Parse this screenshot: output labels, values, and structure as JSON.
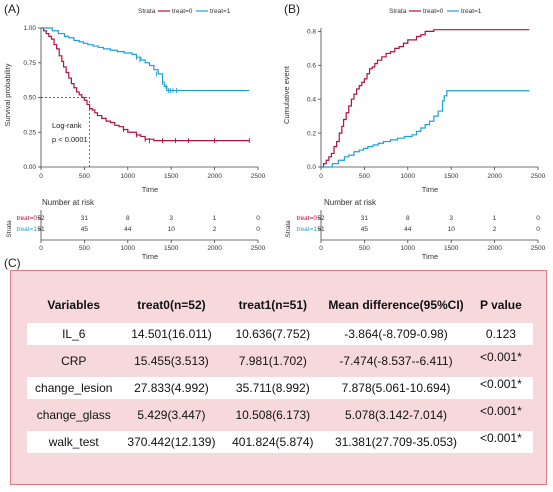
{
  "panels": {
    "a_label": "(A)",
    "b_label": "(B)",
    "c_label": "(C)"
  },
  "legend": {
    "title": "Strata",
    "items": [
      "treat=0",
      "treat=1"
    ],
    "colors": [
      "#b5103c",
      "#1fa0d8"
    ]
  },
  "chart_data": [
    {
      "type": "line",
      "panel": "A",
      "ylabel": "Survival probability",
      "xlabel": "Time",
      "xlim": [
        0,
        2500
      ],
      "ylim": [
        0,
        1
      ],
      "xticks": [
        0,
        500,
        1000,
        1500,
        2000,
        2500
      ],
      "yticks": [
        "0.00",
        "0.25",
        "0.50",
        "0.75",
        "1.00"
      ],
      "annotation": [
        "Log-rank",
        "p < 0.0001"
      ],
      "series": [
        {
          "name": "treat=0",
          "x": [
            0,
            30,
            60,
            90,
            120,
            150,
            180,
            210,
            240,
            260,
            290,
            320,
            350,
            380,
            410,
            440,
            470,
            500,
            530,
            560,
            590,
            620,
            650,
            700,
            750,
            800,
            850,
            900,
            950,
            1000,
            1100,
            1150,
            1200,
            1300,
            1500,
            1700,
            2000,
            2400
          ],
          "y": [
            1.0,
            0.98,
            0.96,
            0.94,
            0.92,
            0.88,
            0.85,
            0.8,
            0.76,
            0.72,
            0.68,
            0.64,
            0.6,
            0.57,
            0.54,
            0.52,
            0.5,
            0.48,
            0.45,
            0.42,
            0.41,
            0.39,
            0.37,
            0.35,
            0.33,
            0.32,
            0.3,
            0.29,
            0.27,
            0.25,
            0.23,
            0.22,
            0.2,
            0.19,
            0.19,
            0.19,
            0.19,
            0.19
          ]
        },
        {
          "name": "treat=1",
          "x": [
            0,
            100,
            130,
            200,
            270,
            320,
            380,
            440,
            490,
            540,
            600,
            660,
            720,
            800,
            880,
            960,
            1050,
            1100,
            1150,
            1200,
            1250,
            1300,
            1350,
            1400,
            1420,
            1450,
            1500,
            2000,
            2400
          ],
          "y": [
            1.0,
            1.0,
            0.98,
            0.96,
            0.94,
            0.93,
            0.91,
            0.9,
            0.89,
            0.88,
            0.87,
            0.86,
            0.85,
            0.84,
            0.83,
            0.82,
            0.81,
            0.79,
            0.77,
            0.75,
            0.73,
            0.7,
            0.67,
            0.61,
            0.58,
            0.55,
            0.55,
            0.55,
            0.55
          ]
        }
      ],
      "censor_points": [
        {
          "series": "treat=0",
          "x": [
            950,
            1100,
            1200,
            1250,
            1400,
            1550,
            1700,
            2000,
            2400
          ],
          "y": [
            0.27,
            0.23,
            0.2,
            0.19,
            0.19,
            0.19,
            0.19,
            0.19,
            0.19
          ]
        },
        {
          "series": "treat=1",
          "x": [
            1100,
            1140,
            1330,
            1400,
            1440,
            1470,
            1490,
            1520,
            1560
          ],
          "y": [
            0.79,
            0.77,
            0.67,
            0.61,
            0.58,
            0.55,
            0.55,
            0.55,
            0.55
          ]
        }
      ]
    },
    {
      "type": "line",
      "panel": "B",
      "ylabel": "Cumulative event",
      "xlabel": "Time",
      "xlim": [
        0,
        2500
      ],
      "ylim": [
        0,
        0.82
      ],
      "xticks": [
        0,
        500,
        1000,
        1500,
        2000,
        2500
      ],
      "yticks": [
        "0.0",
        "0.2",
        "0.4",
        "0.6",
        "0.8"
      ],
      "series": [
        {
          "name": "treat=0",
          "x": [
            0,
            30,
            60,
            90,
            120,
            150,
            180,
            210,
            240,
            260,
            290,
            320,
            350,
            380,
            410,
            440,
            470,
            500,
            530,
            560,
            590,
            620,
            650,
            700,
            750,
            800,
            850,
            900,
            950,
            1000,
            1100,
            1150,
            1200,
            1300,
            1500,
            1700,
            2000,
            2400
          ],
          "y": [
            0.0,
            0.02,
            0.04,
            0.06,
            0.08,
            0.12,
            0.15,
            0.2,
            0.24,
            0.28,
            0.32,
            0.36,
            0.4,
            0.43,
            0.46,
            0.48,
            0.5,
            0.52,
            0.55,
            0.58,
            0.59,
            0.61,
            0.63,
            0.65,
            0.67,
            0.68,
            0.7,
            0.71,
            0.73,
            0.75,
            0.77,
            0.78,
            0.8,
            0.81,
            0.81,
            0.81,
            0.81,
            0.81
          ]
        },
        {
          "name": "treat=1",
          "x": [
            0,
            100,
            130,
            200,
            270,
            320,
            380,
            440,
            490,
            540,
            600,
            660,
            720,
            800,
            880,
            960,
            1050,
            1100,
            1150,
            1200,
            1250,
            1300,
            1350,
            1400,
            1420,
            1450,
            1500,
            2000,
            2400
          ],
          "y": [
            0.0,
            0.0,
            0.02,
            0.04,
            0.06,
            0.07,
            0.09,
            0.1,
            0.11,
            0.12,
            0.13,
            0.14,
            0.15,
            0.16,
            0.17,
            0.18,
            0.19,
            0.21,
            0.23,
            0.25,
            0.27,
            0.3,
            0.33,
            0.39,
            0.42,
            0.45,
            0.45,
            0.45,
            0.45
          ]
        }
      ]
    }
  ],
  "risk_tables": {
    "title": "Number at risk",
    "axis_label": "Strata",
    "xlabel": "Time",
    "xticks": [
      0,
      500,
      1000,
      1500,
      2000,
      2500
    ],
    "rows": [
      {
        "label": "treat=0",
        "values": [
          "52",
          "31",
          "8",
          "3",
          "1",
          "0"
        ]
      },
      {
        "label": "treat=1",
        "values": [
          "51",
          "45",
          "44",
          "10",
          "2",
          "0"
        ]
      }
    ]
  },
  "table": {
    "headers": [
      "Variables",
      "treat0(n=52)",
      "treat1(n=51)",
      "Mean difference(95%CI)",
      "P value"
    ],
    "rows": [
      [
        "IL_6",
        "14.501(16.011)",
        "10.636(7.752)",
        "-3.864(-8.709-0.98)",
        "0.123"
      ],
      [
        "CRP",
        "15.455(3.513)",
        "7.981(1.702)",
        "-7.474(-8.537--6.411)",
        "<0.001*"
      ],
      [
        "change_lesion",
        "27.833(4.992)",
        "35.711(8.992)",
        "7.878(5.061-10.694)",
        "<0.001*"
      ],
      [
        "change_glass",
        "5.429(3.447)",
        "10.508(6.173)",
        "5.078(3.142-7.014)",
        "<0.001*"
      ],
      [
        "walk_test",
        "370.442(12.139)",
        "401.824(5.874)",
        "31.381(27.709-35.053)",
        "<0.001*"
      ]
    ]
  }
}
